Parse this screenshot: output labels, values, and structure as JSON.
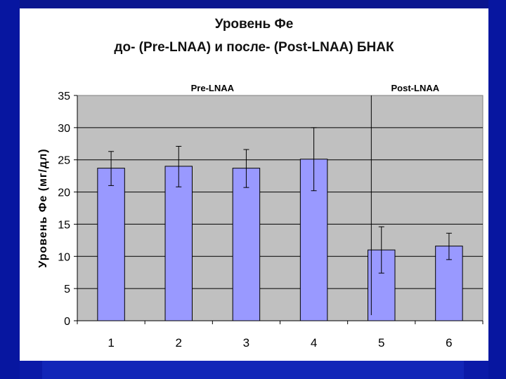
{
  "chart_data": {
    "type": "bar",
    "title_lines": [
      "Уровень Фе",
      "до- (Pre-LNAA) и после- (Post-LNAA) БНАК"
    ],
    "ylabel": "Уровень Фе (мг/дл)",
    "xlabel": "",
    "categories": [
      "1",
      "2",
      "3",
      "4",
      "5",
      "6"
    ],
    "values": [
      23.7,
      24.0,
      23.7,
      25.1,
      11.0,
      11.6
    ],
    "error_low": [
      21.0,
      20.8,
      20.7,
      20.2,
      7.4,
      9.5
    ],
    "error_high": [
      26.3,
      27.1,
      26.6,
      30.0,
      14.6,
      13.6
    ],
    "ylim": [
      0,
      35
    ],
    "yticks": [
      "0",
      "5",
      "10",
      "15",
      "20",
      "25",
      "30",
      "35"
    ],
    "ytick_values": [
      0,
      5,
      10,
      15,
      20,
      25,
      30,
      35
    ],
    "grid": true,
    "groups": [
      {
        "label": "Pre-LNAA",
        "categories": [
          "1",
          "2",
          "3",
          "4"
        ]
      },
      {
        "label": "Post-LNAA",
        "categories": [
          "5",
          "6"
        ]
      }
    ],
    "colors": {
      "bar_fill": "#9999ff",
      "bar_stroke": "#000000",
      "plot_bg": "#c0c0c0",
      "grid": "#000000",
      "background": "#0b1aa8"
    }
  }
}
